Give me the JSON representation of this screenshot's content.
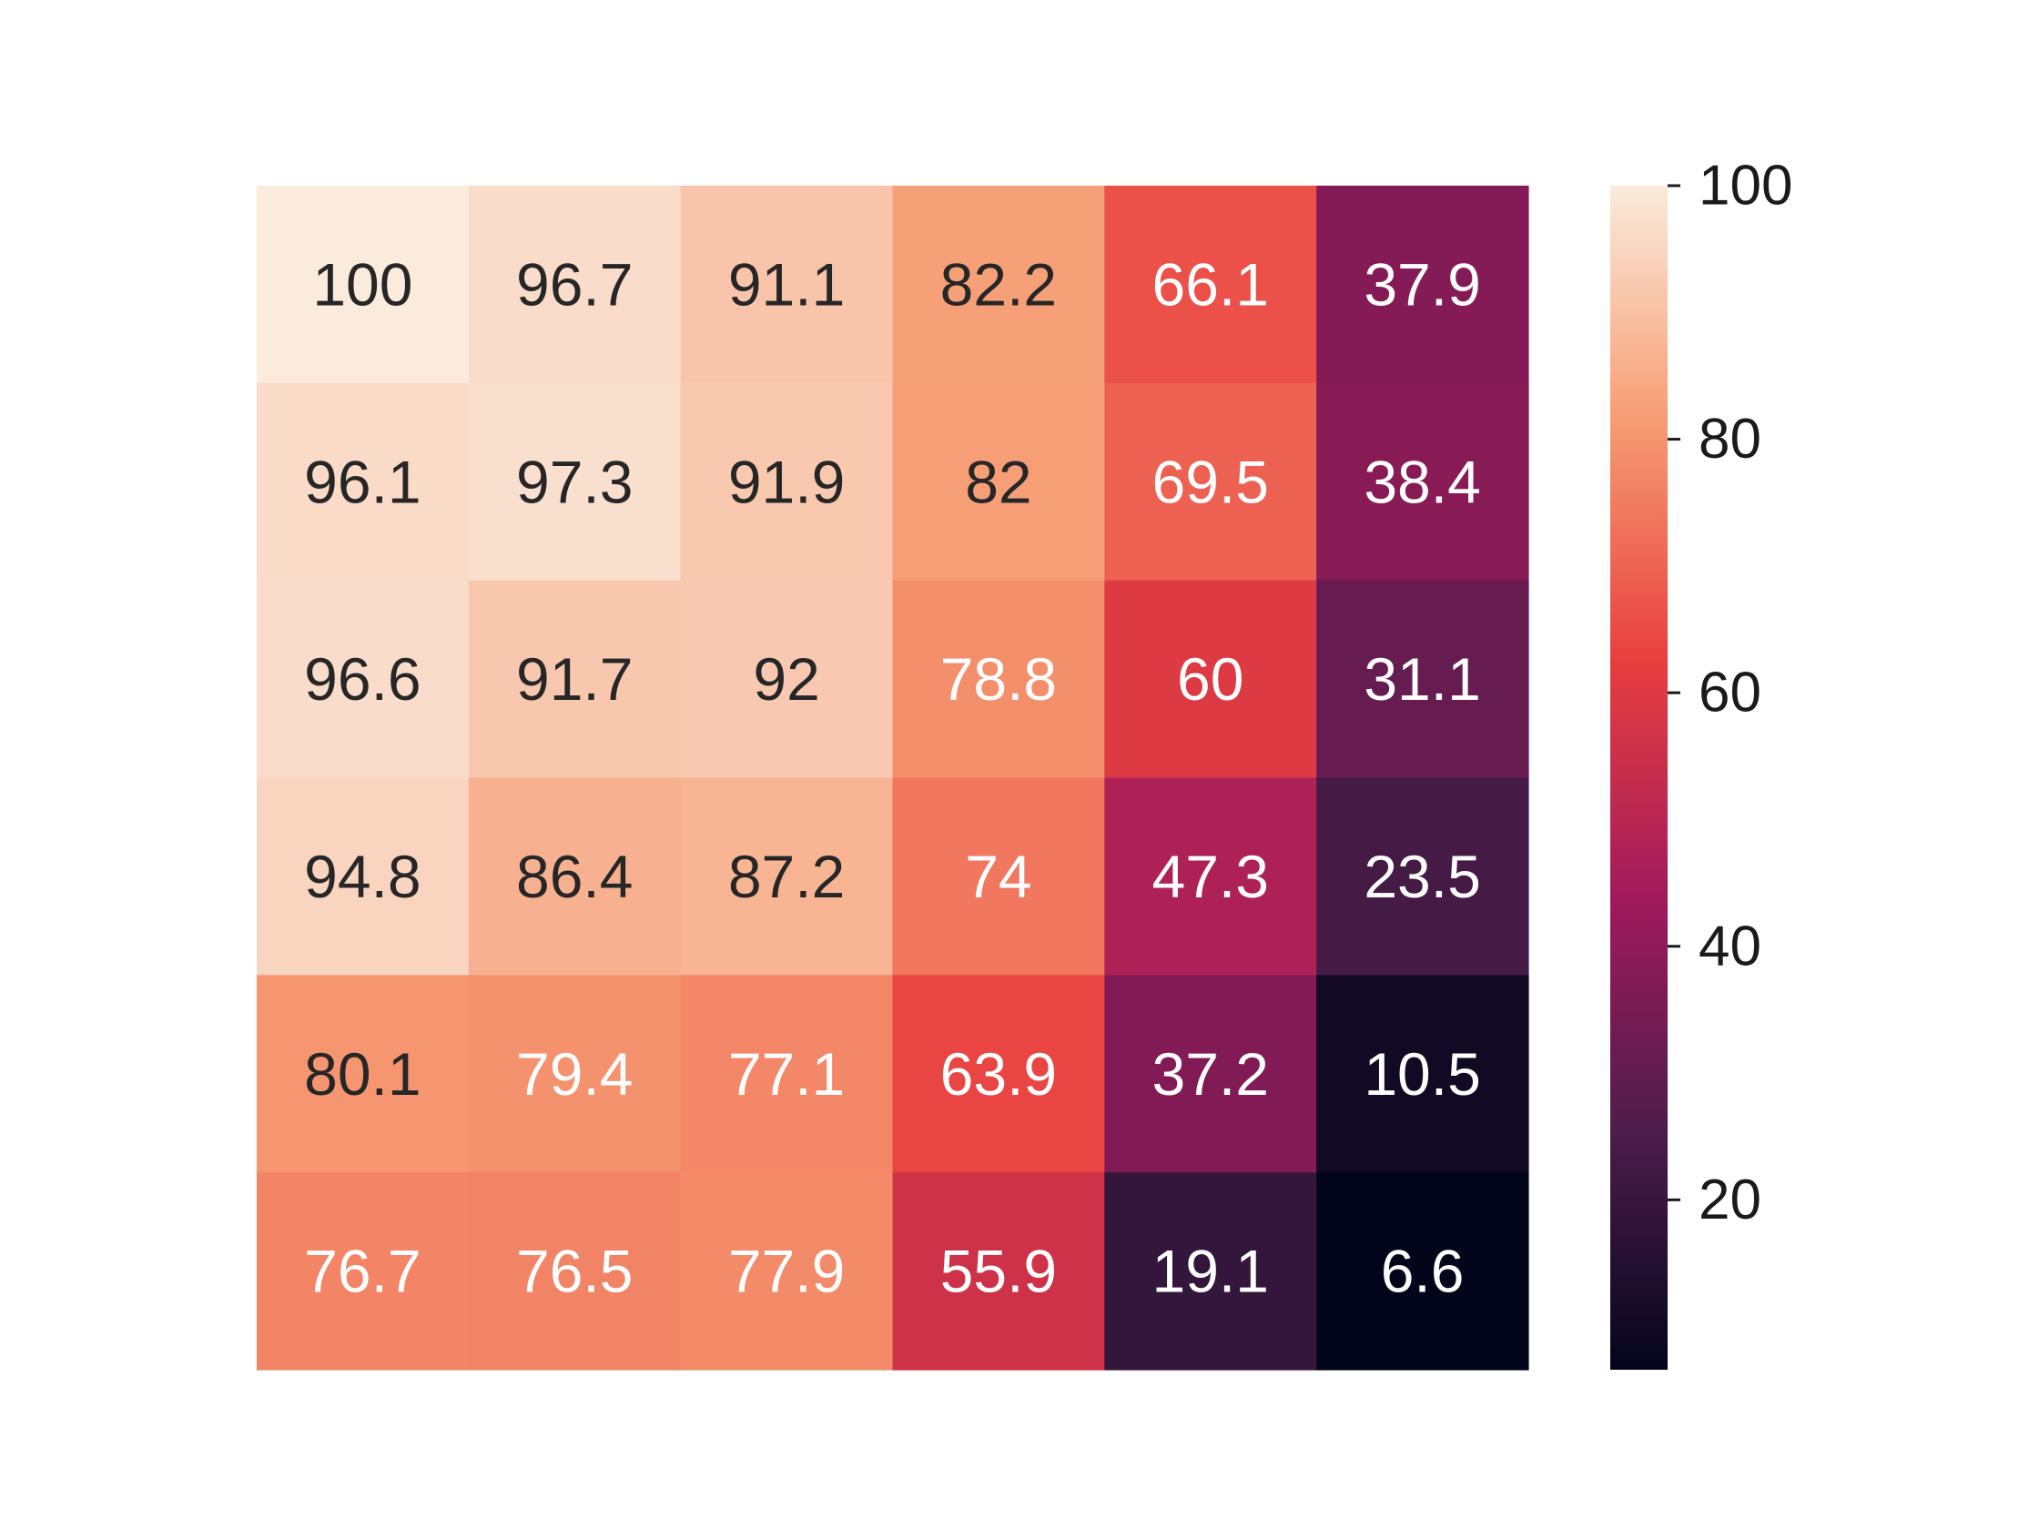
{
  "chart_data": {
    "type": "heatmap",
    "title": "",
    "xlabel": "",
    "ylabel": "",
    "rows": 6,
    "cols": 6,
    "values": [
      [
        100,
        96.7,
        91.1,
        82.2,
        66.1,
        37.9
      ],
      [
        96.1,
        97.3,
        91.9,
        82,
        69.5,
        38.4
      ],
      [
        96.6,
        91.7,
        92,
        78.8,
        60,
        31.1
      ],
      [
        94.8,
        86.4,
        87.2,
        74,
        47.3,
        23.5
      ],
      [
        80.1,
        79.4,
        77.1,
        63.9,
        37.2,
        10.5
      ],
      [
        76.7,
        76.5,
        77.9,
        55.9,
        19.1,
        6.6
      ]
    ],
    "value_labels": [
      [
        "100",
        "96.7",
        "91.1",
        "82.2",
        "66.1",
        "37.9"
      ],
      [
        "96.1",
        "97.3",
        "91.9",
        "82",
        "69.5",
        "38.4"
      ],
      [
        "96.6",
        "91.7",
        "92",
        "78.8",
        "60",
        "31.1"
      ],
      [
        "94.8",
        "86.4",
        "87.2",
        "74",
        "47.3",
        "23.5"
      ],
      [
        "80.1",
        "79.4",
        "77.1",
        "63.9",
        "37.2",
        "10.5"
      ],
      [
        "76.7",
        "76.5",
        "77.9",
        "55.9",
        "19.1",
        "6.6"
      ]
    ],
    "colormap": "rocket",
    "colormap_stops": [
      "#03051a",
      "#4c1d4b",
      "#a11a5b",
      "#e83f3f",
      "#f69c73",
      "#faebdd"
    ],
    "color_range": [
      6.6,
      100
    ],
    "colorbar": {
      "ticks": [
        20,
        40,
        60,
        80,
        100
      ],
      "tick_labels": [
        "20",
        "40",
        "60",
        "80",
        "100"
      ],
      "placement": "right"
    },
    "x_tick_labels": [],
    "y_tick_labels": [],
    "grid": false,
    "text_color_dark": "#262626",
    "text_color_light": "#ffffff"
  }
}
